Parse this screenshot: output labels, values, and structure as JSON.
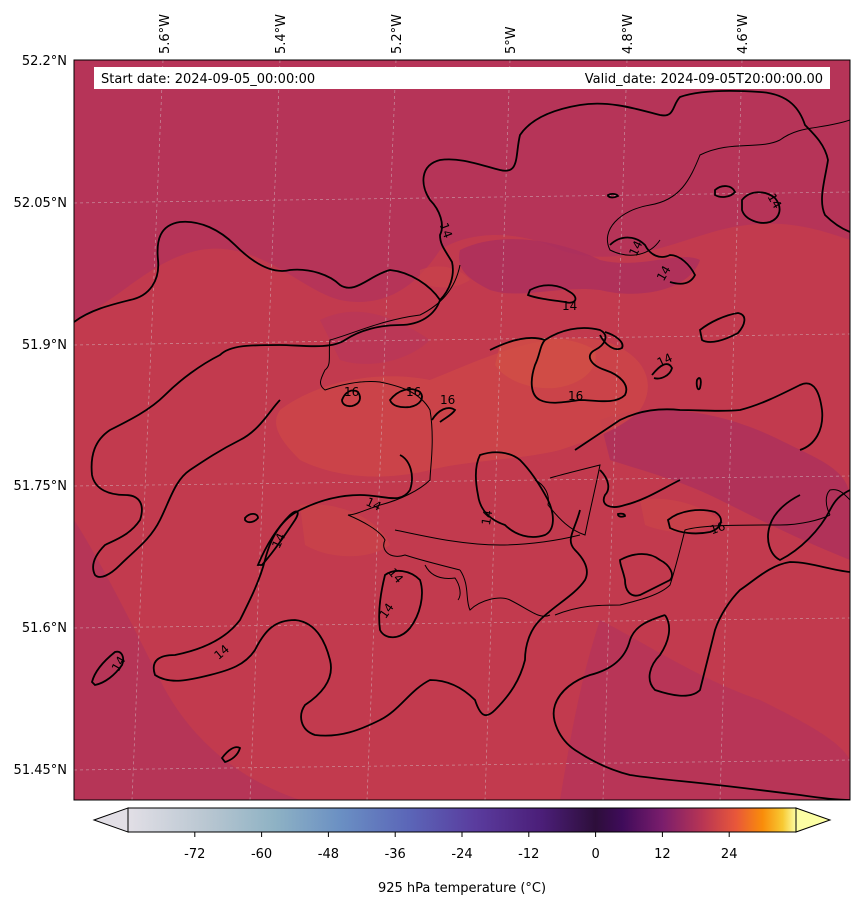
{
  "header": {
    "start_date": "Start date: 2024-09-05_00:00:00",
    "valid_date": "Valid_date: 2024-09-05T20:00:00.00"
  },
  "axes": {
    "lon_labels": [
      "5.6°W",
      "5.4°W",
      "5.2°W",
      "5°W",
      "4.8°W",
      "4.6°W"
    ],
    "lat_labels": [
      "52.2°N",
      "52.05°N",
      "51.9°N",
      "51.75°N",
      "51.6°N",
      "51.45°N"
    ],
    "lon_values": [
      -5.6,
      -5.4,
      -5.2,
      -5.0,
      -4.8,
      -4.6
    ],
    "lat_values": [
      52.2,
      52.05,
      51.9,
      51.75,
      51.6,
      51.45
    ],
    "lon_range": [
      -5.75,
      -4.41
    ],
    "lat_range": [
      51.42,
      52.2
    ]
  },
  "field": {
    "variable": "925 hPa temperature",
    "units": "°C",
    "base_value": 14.5,
    "contour_levels": [
      14,
      16
    ],
    "contour_labels": [
      "14",
      "14",
      "14",
      "14",
      "14",
      "14",
      "14",
      "14",
      "14",
      "14",
      "14",
      "14",
      "16",
      "16",
      "16",
      "16",
      "16"
    ]
  },
  "colorbar": {
    "label": "925 hPa temperature ($^\\circ$C)",
    "ticks": [
      "-72",
      "-60",
      "-48",
      "-36",
      "-24",
      "-12",
      "0",
      "12",
      "24"
    ],
    "tick_values": [
      -72,
      -60,
      -48,
      -36,
      -24,
      -12,
      0,
      12,
      24
    ],
    "range": [
      -84,
      36
    ],
    "colormap": "inferno-twilight",
    "extend": "both"
  },
  "colors": {
    "field_base": "#c23a4e",
    "field_cool": "#b2335a",
    "field_warm": "#cf4a48",
    "contour": "#000000",
    "gridline": "#d9d9d9"
  }
}
